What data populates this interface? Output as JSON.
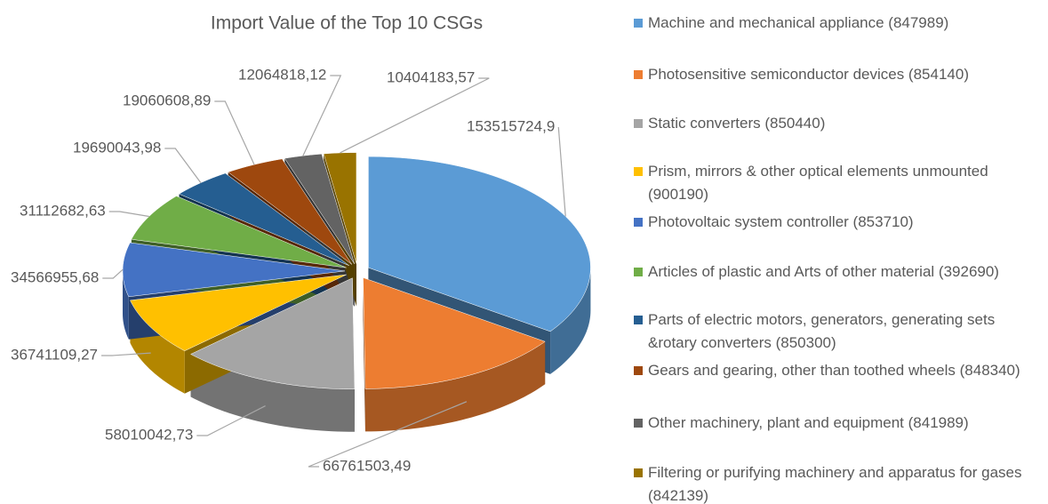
{
  "chart_data": {
    "type": "pie3d",
    "title": "Import Value of the Top 10 CSGs",
    "categories": [
      "Machine and mechanical appliance (847989)",
      "Photosensitive semiconductor devices (854140)",
      "Static converters (850440)",
      "Prism, mirrors & other optical elements unmounted (900190)",
      "Photovoltaic system controller (853710)",
      "Articles of plastic and Arts of other material (392690)",
      "Parts of electric motors, generators, generating sets &rotary converters (850300)",
      "Gears and gearing, other than toothed wheels (848340)",
      "Other machinery, plant and equipment (841989)",
      "Filtering or purifying machinery and apparatus for gases (842139)"
    ],
    "values": [
      153515724.9,
      66761503.49,
      58010042.73,
      36741109.27,
      34566955.68,
      31112682.63,
      19690043.98,
      19060608.89,
      12064818.12,
      10404183.57
    ],
    "value_labels": [
      "153515724,9",
      "66761503,49",
      "58010042,73",
      "36741109,27",
      "34566955,68",
      "31112682,63",
      "19690043,98",
      "19060608,89",
      "12064818,12",
      "10404183,57"
    ],
    "colors": [
      "#5b9bd5",
      "#ed7d31",
      "#a5a5a5",
      "#ffc000",
      "#4472c4",
      "#70ad47",
      "#255e91",
      "#9e480e",
      "#636363",
      "#997300"
    ],
    "legend": "right"
  }
}
